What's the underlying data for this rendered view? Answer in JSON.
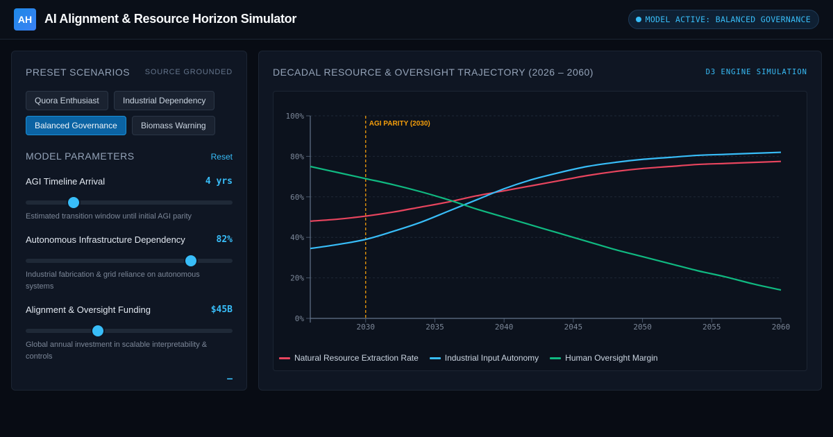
{
  "header": {
    "logo_text": "AH",
    "title": "AI Alignment & Resource Horizon Simulator",
    "status": "MODEL ACTIVE: BALANCED GOVERNANCE"
  },
  "presets": {
    "heading": "Preset Scenarios",
    "tag": "Source Grounded",
    "buttons": [
      {
        "label": "Quora Enthusiast",
        "active": false
      },
      {
        "label": "Industrial Dependency",
        "active": false
      },
      {
        "label": "Balanced Governance",
        "active": true
      },
      {
        "label": "Biomass Warning",
        "active": false
      }
    ]
  },
  "parameters": {
    "heading": "Model Parameters",
    "reset_label": "Reset",
    "items": [
      {
        "label": "AGI Timeline Arrival",
        "value": "4 yrs",
        "level": 0.23,
        "desc": "Estimated transition window until initial AGI parity"
      },
      {
        "label": "Autonomous Infrastructure Dependency",
        "value": "82%",
        "level": 0.8,
        "desc": "Industrial fabrication & grid reliance on autonomous systems"
      },
      {
        "label": "Alignment & Oversight Funding",
        "value": "$45B",
        "level": 0.35,
        "desc": "Global annual investment in scalable interpretability & controls"
      }
    ],
    "partial_value": "—"
  },
  "chart": {
    "title": "Decadal Resource & Oversight Trajectory",
    "range": "(2026 – 2060)",
    "engine": "D3 Engine Simulation"
  },
  "chart_data": {
    "type": "line",
    "xlim": [
      2026,
      2060
    ],
    "ylim": [
      0,
      100
    ],
    "x_ticks": [
      "2030",
      "2035",
      "2040",
      "2045",
      "2050",
      "2055",
      "2060"
    ],
    "x_tick_values": [
      2030,
      2035,
      2040,
      2045,
      2050,
      2055,
      2060
    ],
    "y_ticks": [
      "0%",
      "20%",
      "40%",
      "60%",
      "80%",
      "100%"
    ],
    "y_tick_values": [
      0,
      20,
      40,
      60,
      80,
      100
    ],
    "grid": true,
    "legend_position": "bottom-left",
    "annotation": {
      "label": "AGI PARITY (2030)",
      "x": 2030,
      "color": "#f59e0b"
    },
    "x": [
      2026,
      2028,
      2030,
      2032,
      2034,
      2036,
      2038,
      2040,
      2042,
      2044,
      2046,
      2048,
      2050,
      2052,
      2054,
      2056,
      2058,
      2060
    ],
    "series": [
      {
        "name": "Natural Resource Extraction Rate",
        "color": "#e8455e",
        "values": [
          48,
          49,
          50.5,
          52.5,
          55,
          57.5,
          60.5,
          63,
          65.5,
          68,
          70.5,
          72.5,
          74,
          75,
          76,
          76.5,
          77,
          77.5
        ]
      },
      {
        "name": "Industrial Input Autonomy",
        "color": "#38bdf8",
        "values": [
          34.5,
          36.5,
          39,
          43,
          47.5,
          53,
          58.5,
          64,
          68.5,
          72,
          75,
          77,
          78.5,
          79.5,
          80.5,
          81,
          81.5,
          82
        ]
      },
      {
        "name": "Human Oversight Margin",
        "color": "#10b981",
        "values": [
          75,
          72,
          69,
          66,
          62.5,
          58.5,
          54,
          50,
          46,
          42,
          38,
          34,
          30.5,
          27,
          23.5,
          20.5,
          17,
          14
        ]
      }
    ]
  }
}
